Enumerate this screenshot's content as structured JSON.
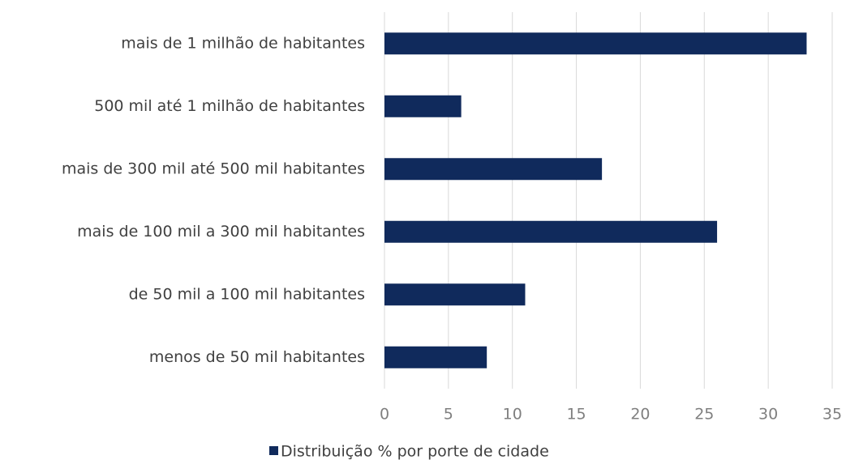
{
  "chart_data": {
    "type": "barh",
    "categories": [
      "mais de 1 milhão de habitantes",
      "500 mil até 1 milhão de habitantes",
      "mais de 300 mil até 500 mil habitantes",
      "mais de 100 mil a 300 mil habitantes",
      "de 50 mil a 100 mil habitantes",
      "menos de 50 mil habitantes"
    ],
    "series": [
      {
        "name": "Distribuição % por porte de cidade",
        "color": "#102a5c",
        "values": [
          33,
          6,
          17,
          26,
          11,
          8
        ]
      }
    ],
    "xlim": [
      0,
      35
    ],
    "xticks": [
      0,
      5,
      10,
      15,
      20,
      25,
      30,
      35
    ],
    "grid": true,
    "legend": "bottom"
  }
}
